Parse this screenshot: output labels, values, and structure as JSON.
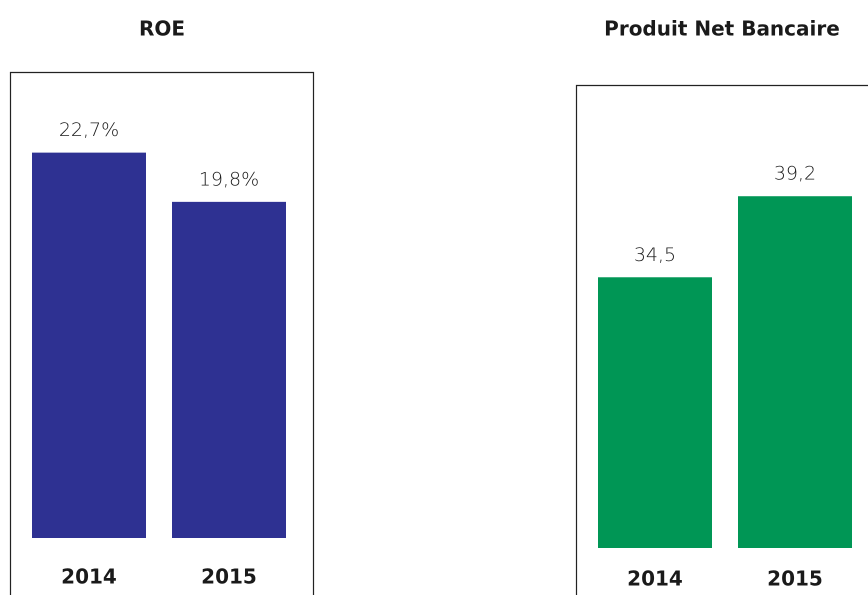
{
  "chart_data": [
    {
      "type": "bar",
      "title": "ROE",
      "categories": [
        "2014",
        "2015"
      ],
      "values": [
        22.7,
        19.8
      ],
      "value_labels": [
        "22,7%",
        "19,8%"
      ],
      "color": "#2e3192",
      "ylim": [
        0,
        25.8
      ]
    },
    {
      "type": "bar",
      "title": "Produit Net Bancaire",
      "categories": [
        "2014",
        "2015"
      ],
      "values": [
        34.5,
        39.2
      ],
      "value_labels": [
        "34,5",
        "39,2"
      ],
      "color": "#009655",
      "ylim": [
        18.8,
        44.2
      ]
    }
  ]
}
